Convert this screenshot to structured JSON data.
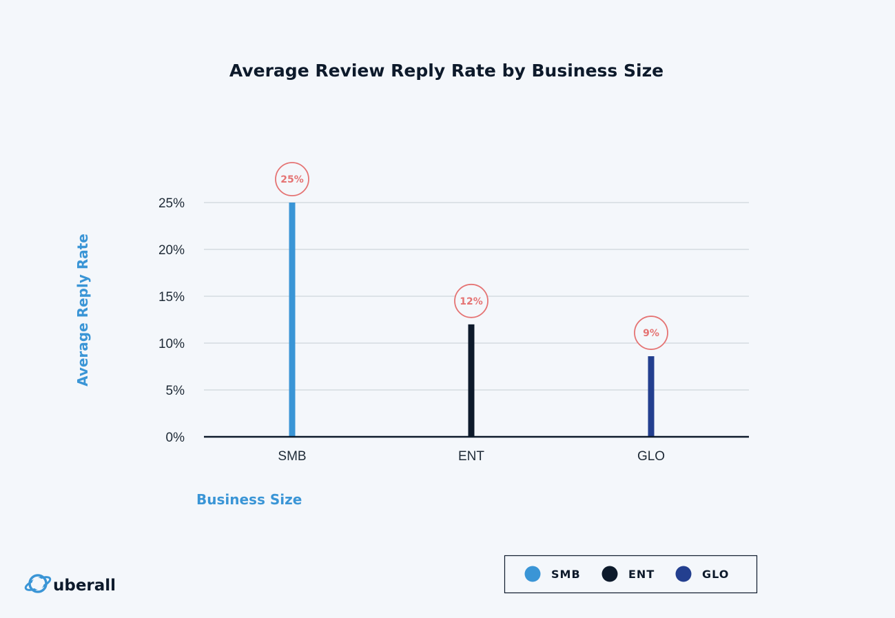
{
  "colors": {
    "background": "#f4f7fb",
    "title": "#0d1a2b",
    "axis_title": "#3a95d6",
    "grid": "#c5ccd3",
    "baseline": "#0d1a2b",
    "bubble": "#e57373",
    "logo_accent": "#3a95d6"
  },
  "logo": {
    "icon": "planet-ring-icon",
    "text": "uberall"
  },
  "chart_data": {
    "type": "bar",
    "title": "Average Review Reply Rate by Business Size",
    "xlabel": "Business Size",
    "ylabel": "Average Reply Rate",
    "categories": [
      "SMB",
      "ENT",
      "GLO"
    ],
    "values": [
      25,
      12,
      8.6
    ],
    "data_labels": [
      "25%",
      "12%",
      "9%"
    ],
    "bar_colors": [
      "#3a95d6",
      "#0d1a2b",
      "#233f8f"
    ],
    "ylim": [
      0,
      25
    ],
    "yticks": [
      0,
      5,
      10,
      15,
      20,
      25
    ],
    "ytick_labels": [
      "0%",
      "5%",
      "10%",
      "15%",
      "20%",
      "25%"
    ],
    "grid": true,
    "legend": {
      "placement": "bottom-right",
      "entries": [
        {
          "label": "SMB",
          "color": "#3a95d6"
        },
        {
          "label": "ENT",
          "color": "#0d1a2b"
        },
        {
          "label": "GLO",
          "color": "#233f8f"
        }
      ]
    }
  }
}
